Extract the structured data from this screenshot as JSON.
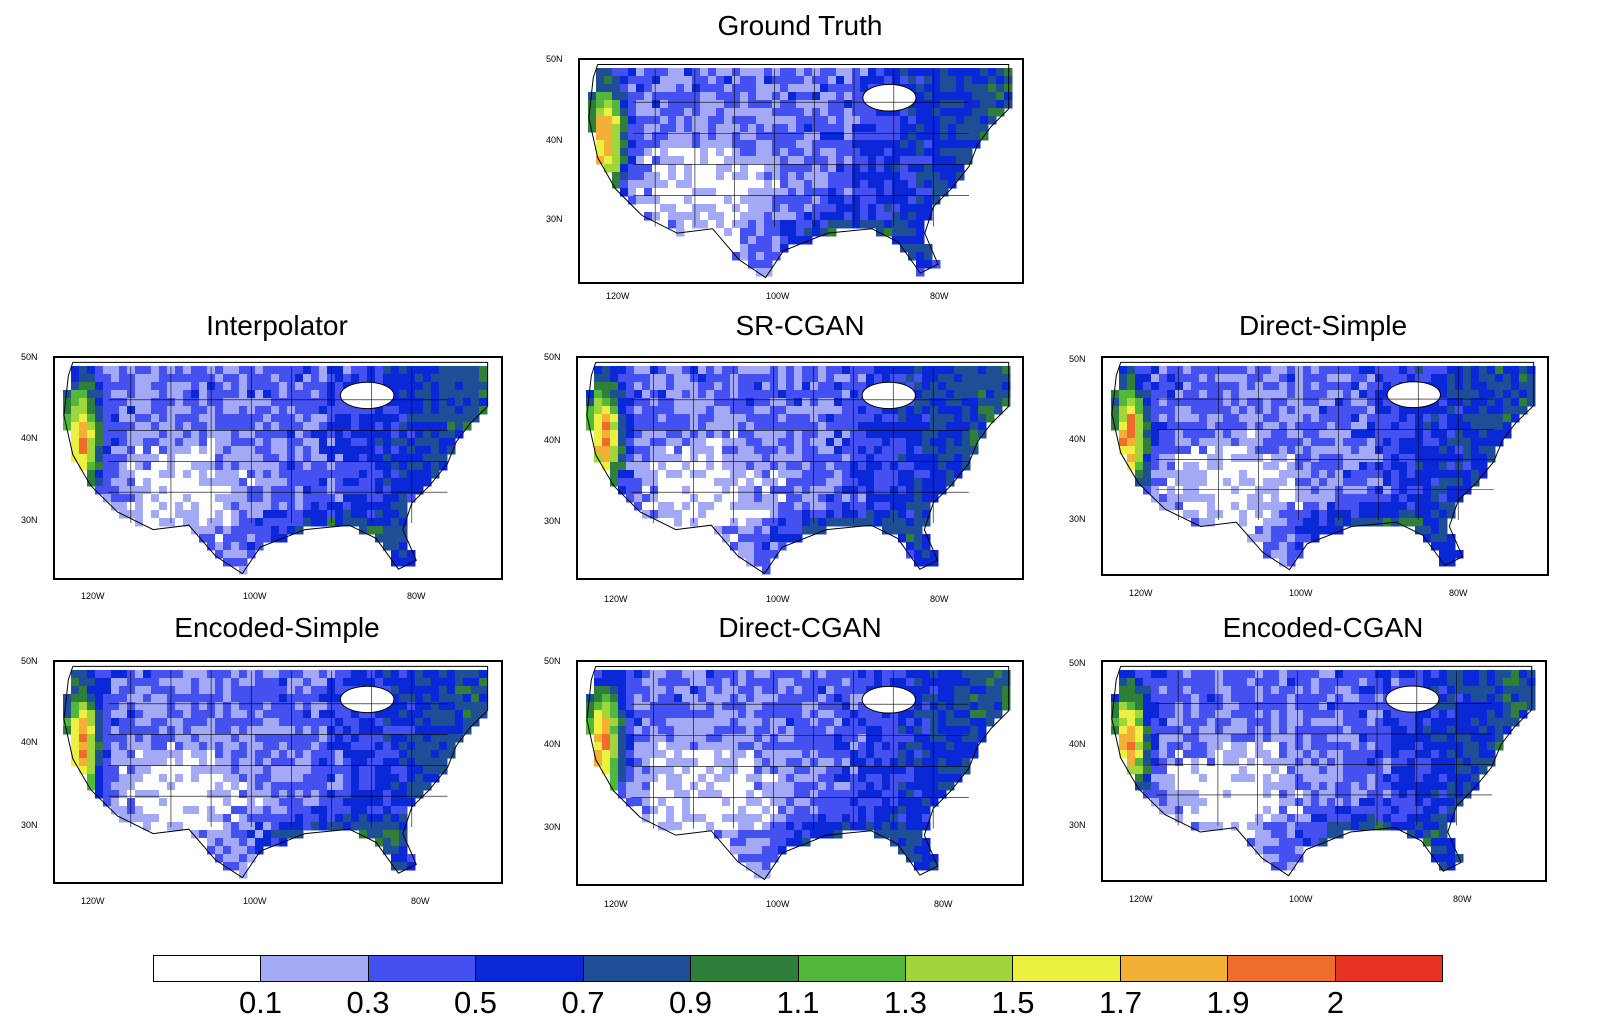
{
  "panels": [
    {
      "title": "Ground Truth"
    },
    {
      "title": "Interpolator"
    },
    {
      "title": "SR-CGAN"
    },
    {
      "title": "Direct-Simple"
    },
    {
      "title": "Encoded-Simple"
    },
    {
      "title": "Direct-CGAN"
    },
    {
      "title": "Encoded-CGAN"
    }
  ],
  "axes": {
    "lat_labels": [
      "50N",
      "40N",
      "30N"
    ],
    "lon_labels": [
      "120W",
      "100W",
      "80W"
    ]
  },
  "colorbar": {
    "colors": [
      "#ffffff",
      "#a4a9f5",
      "#4450f0",
      "#0a28d8",
      "#1e4f96",
      "#2f7f3a",
      "#52b83b",
      "#a0d53b",
      "#ecf041",
      "#f2b036",
      "#ee6c2c",
      "#e63222"
    ],
    "labels": [
      "0.1",
      "0.3",
      "0.5",
      "0.7",
      "0.9",
      "1.1",
      "1.3",
      "1.5",
      "1.7",
      "1.9",
      "2"
    ]
  }
}
